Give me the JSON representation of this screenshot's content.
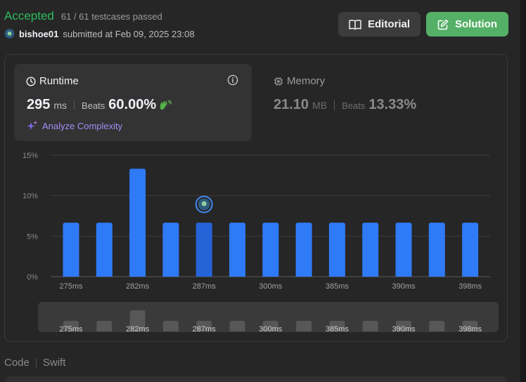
{
  "header": {
    "status": "Accepted",
    "testcases": "61 / 61 testcases passed",
    "username": "bishoe01",
    "submitted_text": "submitted at Feb 09, 2025 23:08"
  },
  "buttons": {
    "editorial": "Editorial",
    "solution": "Solution"
  },
  "runtime": {
    "title": "Runtime",
    "value": "295",
    "unit": "ms",
    "beats_label": "Beats",
    "beats_value": "60.00%",
    "analyze_label": "Analyze Complexity"
  },
  "memory": {
    "title": "Memory",
    "value": "21.10",
    "unit": "MB",
    "beats_label": "Beats",
    "beats_value": "13.33%"
  },
  "code": {
    "label": "Code",
    "language": "Swift"
  },
  "colors": {
    "accepted": "#2cbb5d",
    "solution_button": "#55b067",
    "bar": "#2f7af7",
    "bar_selected": "#2563d9",
    "analyze": "#a58cf5"
  },
  "chart_data": {
    "type": "bar",
    "y_tick_labels": [
      "0%",
      "5%",
      "10%",
      "15%"
    ],
    "ylim": [
      0,
      15
    ],
    "x_tick_labels": [
      "275ms",
      "282ms",
      "287ms",
      "300ms",
      "385ms",
      "390ms",
      "398ms"
    ],
    "x_label_positions": [
      0,
      2,
      4,
      6,
      8,
      10,
      12
    ],
    "values": [
      6.67,
      6.67,
      13.33,
      6.67,
      6.67,
      6.67,
      6.67,
      6.67,
      6.67,
      6.67,
      6.67,
      6.67,
      6.67
    ],
    "highlighted_index": 4,
    "grid": true,
    "overview_tick_labels": [
      "275ms",
      "282ms",
      "287ms",
      "300ms",
      "385ms",
      "390ms",
      "398ms"
    ]
  }
}
